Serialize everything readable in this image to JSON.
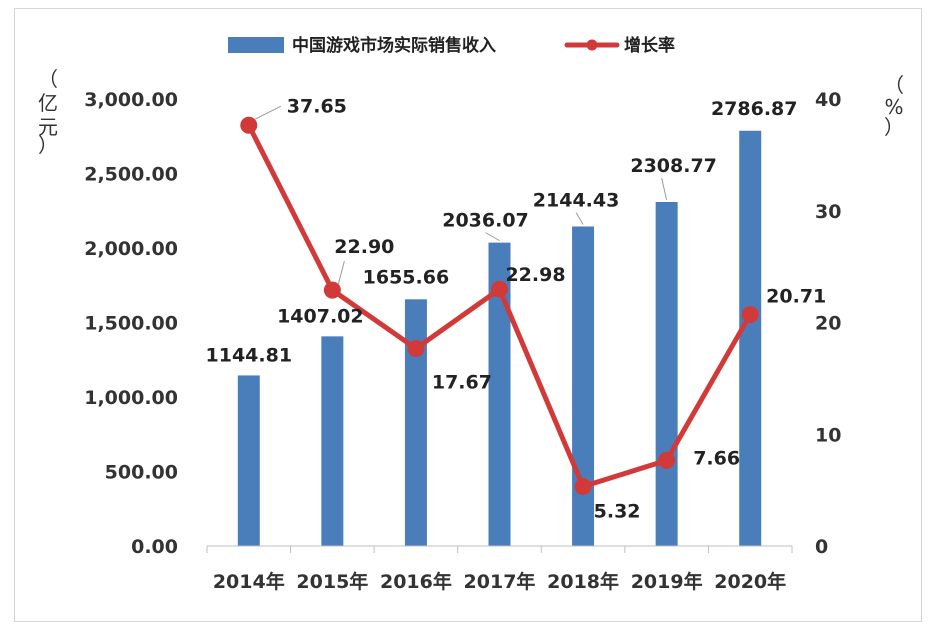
{
  "chart_data": {
    "type": "bar",
    "categories": [
      "2014年",
      "2015年",
      "2016年",
      "2017年",
      "2018年",
      "2019年",
      "2020年"
    ],
    "series": [
      {
        "name": "中国游戏市场实际销售收入",
        "type": "bar",
        "axis": "left",
        "values": [
          1144.81,
          1407.02,
          1655.66,
          2036.07,
          2144.43,
          2308.77,
          2786.87
        ],
        "labels": [
          "1144.81",
          "1407.02",
          "1655.66",
          "2036.07",
          "2144.43",
          "2308.77",
          "2786.87"
        ],
        "color": "#4a7ebb"
      },
      {
        "name": "增长率",
        "type": "line",
        "axis": "right",
        "values": [
          37.65,
          22.9,
          17.67,
          22.98,
          5.32,
          7.66,
          20.71
        ],
        "labels": [
          "37.65",
          "22.90",
          "17.67",
          "22.98",
          "5.32",
          "7.66",
          "20.71"
        ],
        "color": "#d23a3a"
      }
    ],
    "y_left": {
      "unit_chars": [
        "（",
        "亿",
        "元",
        "）"
      ],
      "ylim": [
        0,
        3000
      ],
      "ticks": [
        0,
        500,
        1000,
        1500,
        2000,
        2500,
        3000
      ],
      "tick_labels": [
        "0.00",
        "500.00",
        "1,000.00",
        "1,500.00",
        "2,000.00",
        "2,500.00",
        "3,000.00"
      ]
    },
    "y_right": {
      "unit_chars": [
        "（",
        "%",
        "）"
      ],
      "ylim": [
        0,
        40
      ],
      "ticks": [
        0,
        10,
        20,
        30,
        40
      ],
      "tick_labels": [
        "0",
        "10",
        "20",
        "30",
        "40"
      ]
    },
    "grid": false,
    "legend_position": "top"
  }
}
